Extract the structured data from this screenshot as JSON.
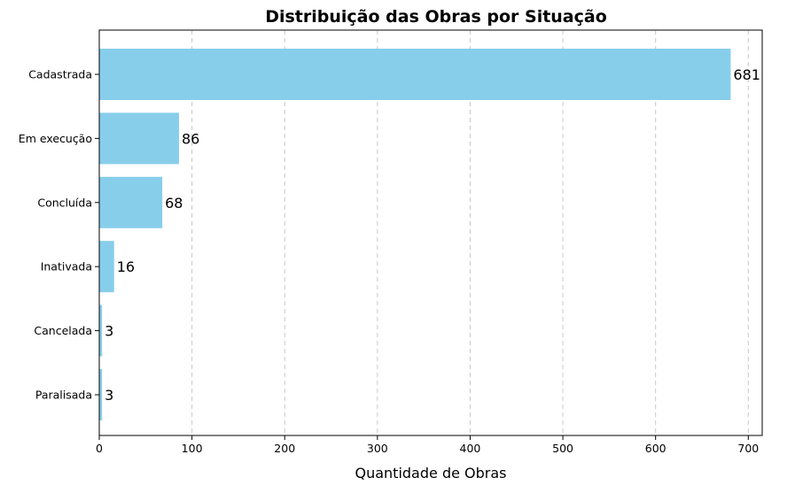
{
  "chart_data": {
    "type": "bar",
    "orientation": "horizontal",
    "title": "Distribuição das Obras por Situação",
    "xlabel": "Quantidade de Obras",
    "ylabel": "",
    "categories": [
      "Cadastrada",
      "Em execução",
      "Concluída",
      "Inativada",
      "Cancelada",
      "Paralisada"
    ],
    "values": [
      681,
      86,
      68,
      16,
      3,
      3
    ],
    "xlim": [
      0,
      715
    ],
    "xticks": [
      0,
      100,
      200,
      300,
      400,
      500,
      600,
      700
    ],
    "grid": {
      "x": true,
      "y": false
    },
    "bar_color": "#87CEEB",
    "data_labels": true
  }
}
